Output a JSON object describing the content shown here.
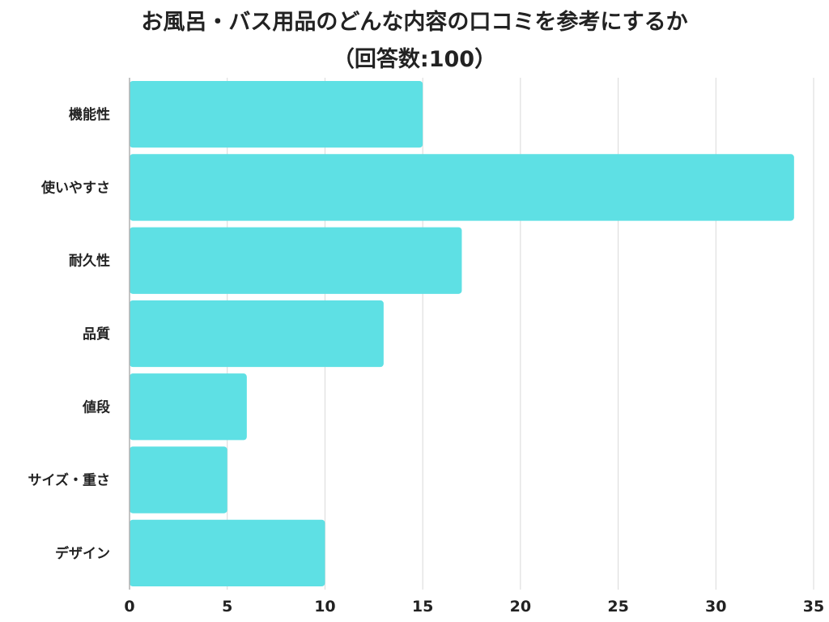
{
  "title": {
    "line1": "お風呂・バス用品のどんな内容の口コミを参考にするか",
    "line2": "（回答数:100）"
  },
  "colors": {
    "bar": "#5ee0e4",
    "grid": "#d9d9d9",
    "axis": "#b0b0b0",
    "text": "#222222"
  },
  "chart_data": {
    "type": "bar",
    "orientation": "horizontal",
    "title": "お風呂・バス用品のどんな内容の口コミを参考にするか（回答数:100）",
    "categories": [
      "機能性",
      "使いやすさ",
      "耐久性",
      "品質",
      "値段",
      "サイズ・重さ",
      "デザイン"
    ],
    "values": [
      15,
      34,
      17,
      13,
      6,
      5,
      10
    ],
    "xlim": [
      0,
      35
    ],
    "xticks": [
      0,
      5,
      10,
      15,
      20,
      25,
      30,
      35
    ],
    "grid": "vertical",
    "xlabel": "",
    "ylabel": ""
  }
}
